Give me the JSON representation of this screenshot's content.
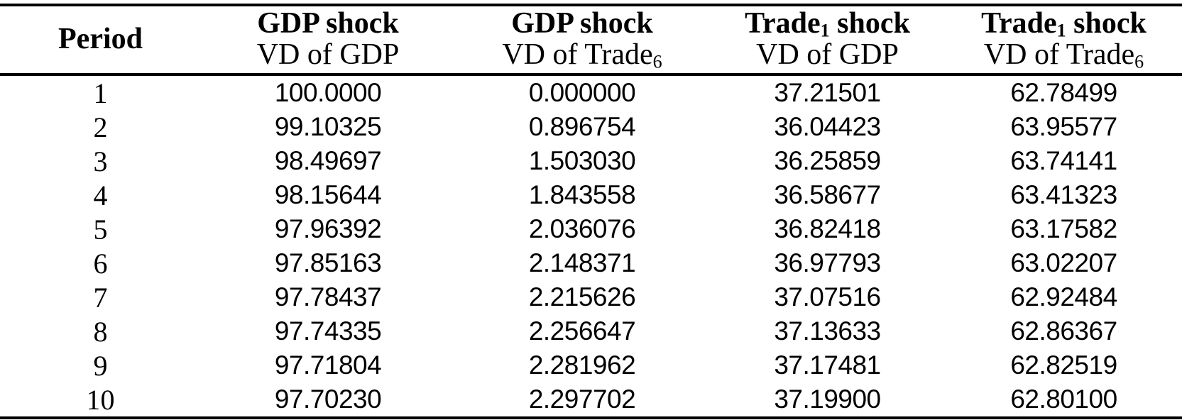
{
  "table": {
    "header": {
      "period": "Period",
      "col2": {
        "l1a": "GDP shock",
        "l1sub": "",
        "l1b": "",
        "l2a": "VD of GDP",
        "l2sub": "",
        "l2b": ""
      },
      "col3": {
        "l1a": "GDP shock",
        "l1sub": "",
        "l1b": "",
        "l2a": "VD of Trade",
        "l2sub": "6",
        "l2b": ""
      },
      "col4": {
        "l1a": "Trade",
        "l1sub": "1",
        "l1b": " shock",
        "l2a": "VD of GDP",
        "l2sub": "",
        "l2b": ""
      },
      "col5": {
        "l1a": "Trade",
        "l1sub": "1",
        "l1b": " shock",
        "l2a": "VD of Trade",
        "l2sub": "6",
        "l2b": ""
      }
    },
    "rows": [
      {
        "period": "1",
        "c2": "100.0000",
        "c3": "0.000000",
        "c4": "37.21501",
        "c5": "62.78499"
      },
      {
        "period": "2",
        "c2": "99.10325",
        "c3": "0.896754",
        "c4": "36.04423",
        "c5": "63.95577"
      },
      {
        "period": "3",
        "c2": "98.49697",
        "c3": "1.503030",
        "c4": "36.25859",
        "c5": "63.74141"
      },
      {
        "period": "4",
        "c2": "98.15644",
        "c3": "1.843558",
        "c4": "36.58677",
        "c5": "63.41323"
      },
      {
        "period": "5",
        "c2": "97.96392",
        "c3": "2.036076",
        "c4": "36.82418",
        "c5": "63.17582"
      },
      {
        "period": "6",
        "c2": "97.85163",
        "c3": "2.148371",
        "c4": "36.97793",
        "c5": "63.02207"
      },
      {
        "period": "7",
        "c2": "97.78437",
        "c3": "2.215626",
        "c4": "37.07516",
        "c5": "62.92484"
      },
      {
        "period": "8",
        "c2": "97.74335",
        "c3": "2.256647",
        "c4": "37.13633",
        "c5": "62.86367"
      },
      {
        "period": "9",
        "c2": "97.71804",
        "c3": "2.281962",
        "c4": "37.17481",
        "c5": "62.82519"
      },
      {
        "period": "10",
        "c2": "97.70230",
        "c3": "2.297702",
        "c4": "37.19900",
        "c5": "62.80100"
      }
    ]
  }
}
